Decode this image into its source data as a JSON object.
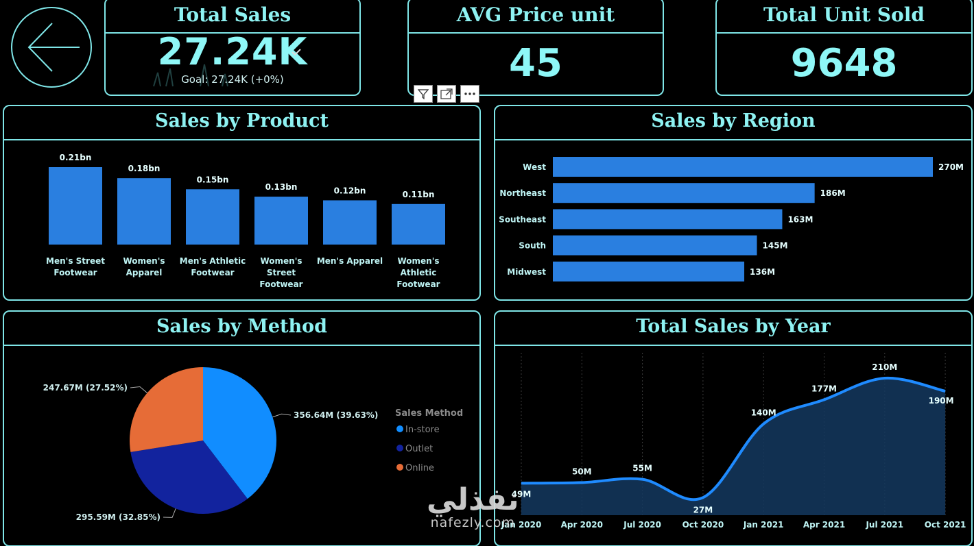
{
  "kpis": {
    "total_sales": {
      "title": "Total Sales",
      "value": "27.24K",
      "goal": "Goal: 27.24K (+0%)"
    },
    "avg_price": {
      "title": "AVG Price unit",
      "value": "45"
    },
    "units_sold": {
      "title": "Total Unit Sold",
      "value": "9648"
    }
  },
  "panels": {
    "product": "Sales by Product",
    "region": "Sales by Region",
    "method": "Sales by Method",
    "year": "Total Sales by Year"
  },
  "legend": {
    "title": "Sales Method"
  },
  "watermark": {
    "script": "نفذلي",
    "latin": "nafezly.com"
  },
  "colors": {
    "accent": "#7fe6e8",
    "bar": "#2a7fe0",
    "instore": "#118dff",
    "outlet": "#12239e",
    "online": "#e66c37"
  },
  "chart_data": [
    {
      "type": "bar",
      "title": "Sales by Product",
      "categories": [
        [
          "Men's Street",
          "Footwear"
        ],
        [
          "Women's",
          "Apparel"
        ],
        [
          "Men's Athletic",
          "Footwear"
        ],
        [
          "Women's",
          "Street",
          "Footwear"
        ],
        [
          "Men's Apparel"
        ],
        [
          "Women's",
          "Athletic",
          "Footwear"
        ]
      ],
      "values": [
        0.21,
        0.18,
        0.15,
        0.13,
        0.12,
        0.11
      ],
      "labels": [
        "0.21bn",
        "0.18bn",
        "0.15bn",
        "0.13bn",
        "0.12bn",
        "0.11bn"
      ]
    },
    {
      "type": "bar",
      "orientation": "horizontal",
      "title": "Sales by Region",
      "categories": [
        "West",
        "Northeast",
        "Southeast",
        "South",
        "Midwest"
      ],
      "values": [
        270,
        186,
        163,
        145,
        136
      ],
      "labels": [
        "270M",
        "186M",
        "163M",
        "145M",
        "136M"
      ]
    },
    {
      "type": "pie",
      "title": "Sales by Method",
      "categories": [
        "In-store",
        "Outlet",
        "Online"
      ],
      "values": [
        356.64,
        295.59,
        247.67
      ],
      "labels": [
        "356.64M (39.63%)",
        "295.59M (32.85%)",
        "247.67M (27.52%)"
      ],
      "legend": "right"
    },
    {
      "type": "area",
      "title": "Total Sales by Year",
      "x": [
        "Jan 2020",
        "Apr 2020",
        "Jul 2020",
        "Oct 2020",
        "Jan 2021",
        "Apr 2021",
        "Jul 2021",
        "Oct 2021"
      ],
      "values": [
        49,
        50,
        55,
        27,
        140,
        177,
        210,
        190
      ],
      "labels": [
        "49M",
        "50M",
        "55M",
        "27M",
        "140M",
        "177M",
        "210M",
        "190M"
      ]
    }
  ]
}
